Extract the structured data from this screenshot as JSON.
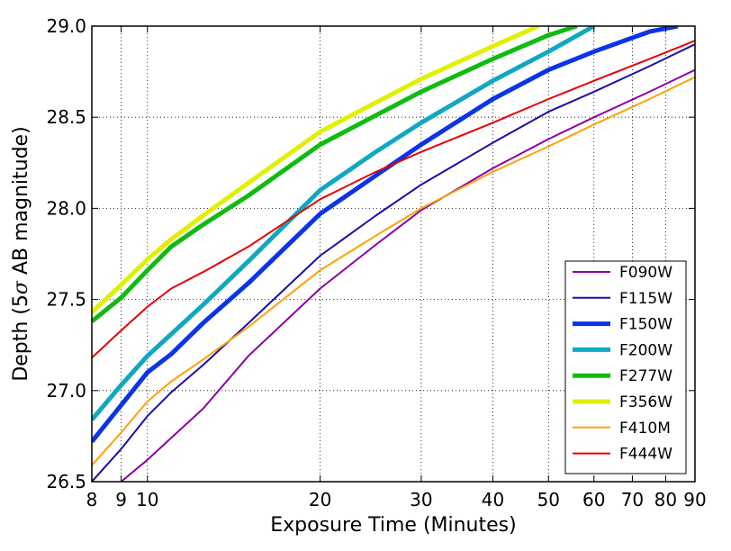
{
  "chart_data": {
    "type": "line",
    "xlabel": "Exposure Time (Minutes)",
    "ylabel_prefix": "Depth (5",
    "ylabel_symbol": "σ",
    "ylabel_suffix": " AB magnitude)",
    "xscale": "log",
    "xlim": [
      8,
      90
    ],
    "ylim": [
      26.5,
      29.0
    ],
    "xticks": [
      8,
      9,
      10,
      20,
      30,
      40,
      50,
      60,
      70,
      80,
      90
    ],
    "xtick_labels": [
      "8",
      "9",
      "10",
      "20",
      "30",
      "40",
      "50",
      "60",
      "70",
      "80",
      "90"
    ],
    "yticks": [
      26.5,
      27.0,
      27.5,
      28.0,
      28.5,
      29.0
    ],
    "ytick_labels": [
      "26.5",
      "27.0",
      "27.5",
      "28.0",
      "28.5",
      "29.0"
    ],
    "grid": true,
    "legend_position": "bottom-right",
    "series": [
      {
        "name": "F090W",
        "color": "#8b00a3",
        "width": 2,
        "x": [
          9,
          10,
          11,
          12.5,
          15,
          20,
          25,
          30,
          40,
          50,
          60,
          75,
          90
        ],
        "y": [
          26.5,
          26.62,
          26.74,
          26.9,
          27.19,
          27.56,
          27.8,
          27.99,
          28.22,
          28.38,
          28.5,
          28.64,
          28.76
        ]
      },
      {
        "name": "F115W",
        "color": "#1b0fa6",
        "width": 2,
        "x": [
          8,
          9,
          10,
          11,
          12.5,
          15,
          20,
          25,
          30,
          40,
          50,
          60,
          75,
          90
        ],
        "y": [
          26.5,
          26.68,
          26.86,
          26.99,
          27.14,
          27.37,
          27.74,
          27.96,
          28.13,
          28.36,
          28.53,
          28.64,
          28.78,
          28.9
        ]
      },
      {
        "name": "F150W",
        "color": "#0a34e8",
        "width": 5,
        "x": [
          8,
          9,
          10,
          11,
          12.5,
          15,
          20,
          25,
          30,
          40,
          50,
          60,
          75,
          84
        ],
        "y": [
          26.72,
          26.92,
          27.1,
          27.2,
          27.37,
          27.59,
          27.97,
          28.18,
          28.35,
          28.6,
          28.76,
          28.86,
          28.97,
          29.0
        ]
      },
      {
        "name": "F200W",
        "color": "#0fa8c0",
        "width": 5,
        "x": [
          8,
          9,
          10,
          11,
          12.5,
          15,
          20,
          25,
          30,
          40,
          50,
          60
        ],
        "y": [
          26.84,
          27.03,
          27.19,
          27.31,
          27.47,
          27.71,
          28.1,
          28.31,
          28.47,
          28.7,
          28.86,
          29.0
        ]
      },
      {
        "name": "F277W",
        "color": "#10bb10",
        "width": 5,
        "x": [
          8,
          9,
          10,
          11,
          12.5,
          15,
          20,
          25,
          30,
          40,
          50,
          56
        ],
        "y": [
          27.38,
          27.51,
          27.66,
          27.79,
          27.91,
          28.07,
          28.35,
          28.51,
          28.64,
          28.82,
          28.95,
          29.0
        ]
      },
      {
        "name": "F356W",
        "color": "#e0f000",
        "width": 5,
        "x": [
          8,
          9,
          10,
          11,
          12.5,
          15,
          20,
          25,
          30,
          40,
          48
        ],
        "y": [
          27.43,
          27.58,
          27.72,
          27.83,
          27.96,
          28.14,
          28.42,
          28.58,
          28.71,
          28.89,
          29.0
        ]
      },
      {
        "name": "F410M",
        "color": "#ffa000",
        "width": 2,
        "x": [
          8,
          9,
          10,
          11,
          12.5,
          15,
          20,
          25,
          30,
          40,
          50,
          60,
          75,
          90
        ],
        "y": [
          26.59,
          26.77,
          26.94,
          27.05,
          27.17,
          27.35,
          27.66,
          27.85,
          28.0,
          28.2,
          28.34,
          28.46,
          28.6,
          28.72
        ]
      },
      {
        "name": "F444W",
        "color": "#e80000",
        "width": 2,
        "x": [
          8,
          9,
          10,
          11,
          12.5,
          15,
          20,
          25,
          30,
          40,
          50,
          60,
          75,
          90
        ],
        "y": [
          27.18,
          27.33,
          27.46,
          27.56,
          27.65,
          27.79,
          28.05,
          28.2,
          28.31,
          28.47,
          28.6,
          28.7,
          28.82,
          28.92
        ]
      }
    ]
  }
}
